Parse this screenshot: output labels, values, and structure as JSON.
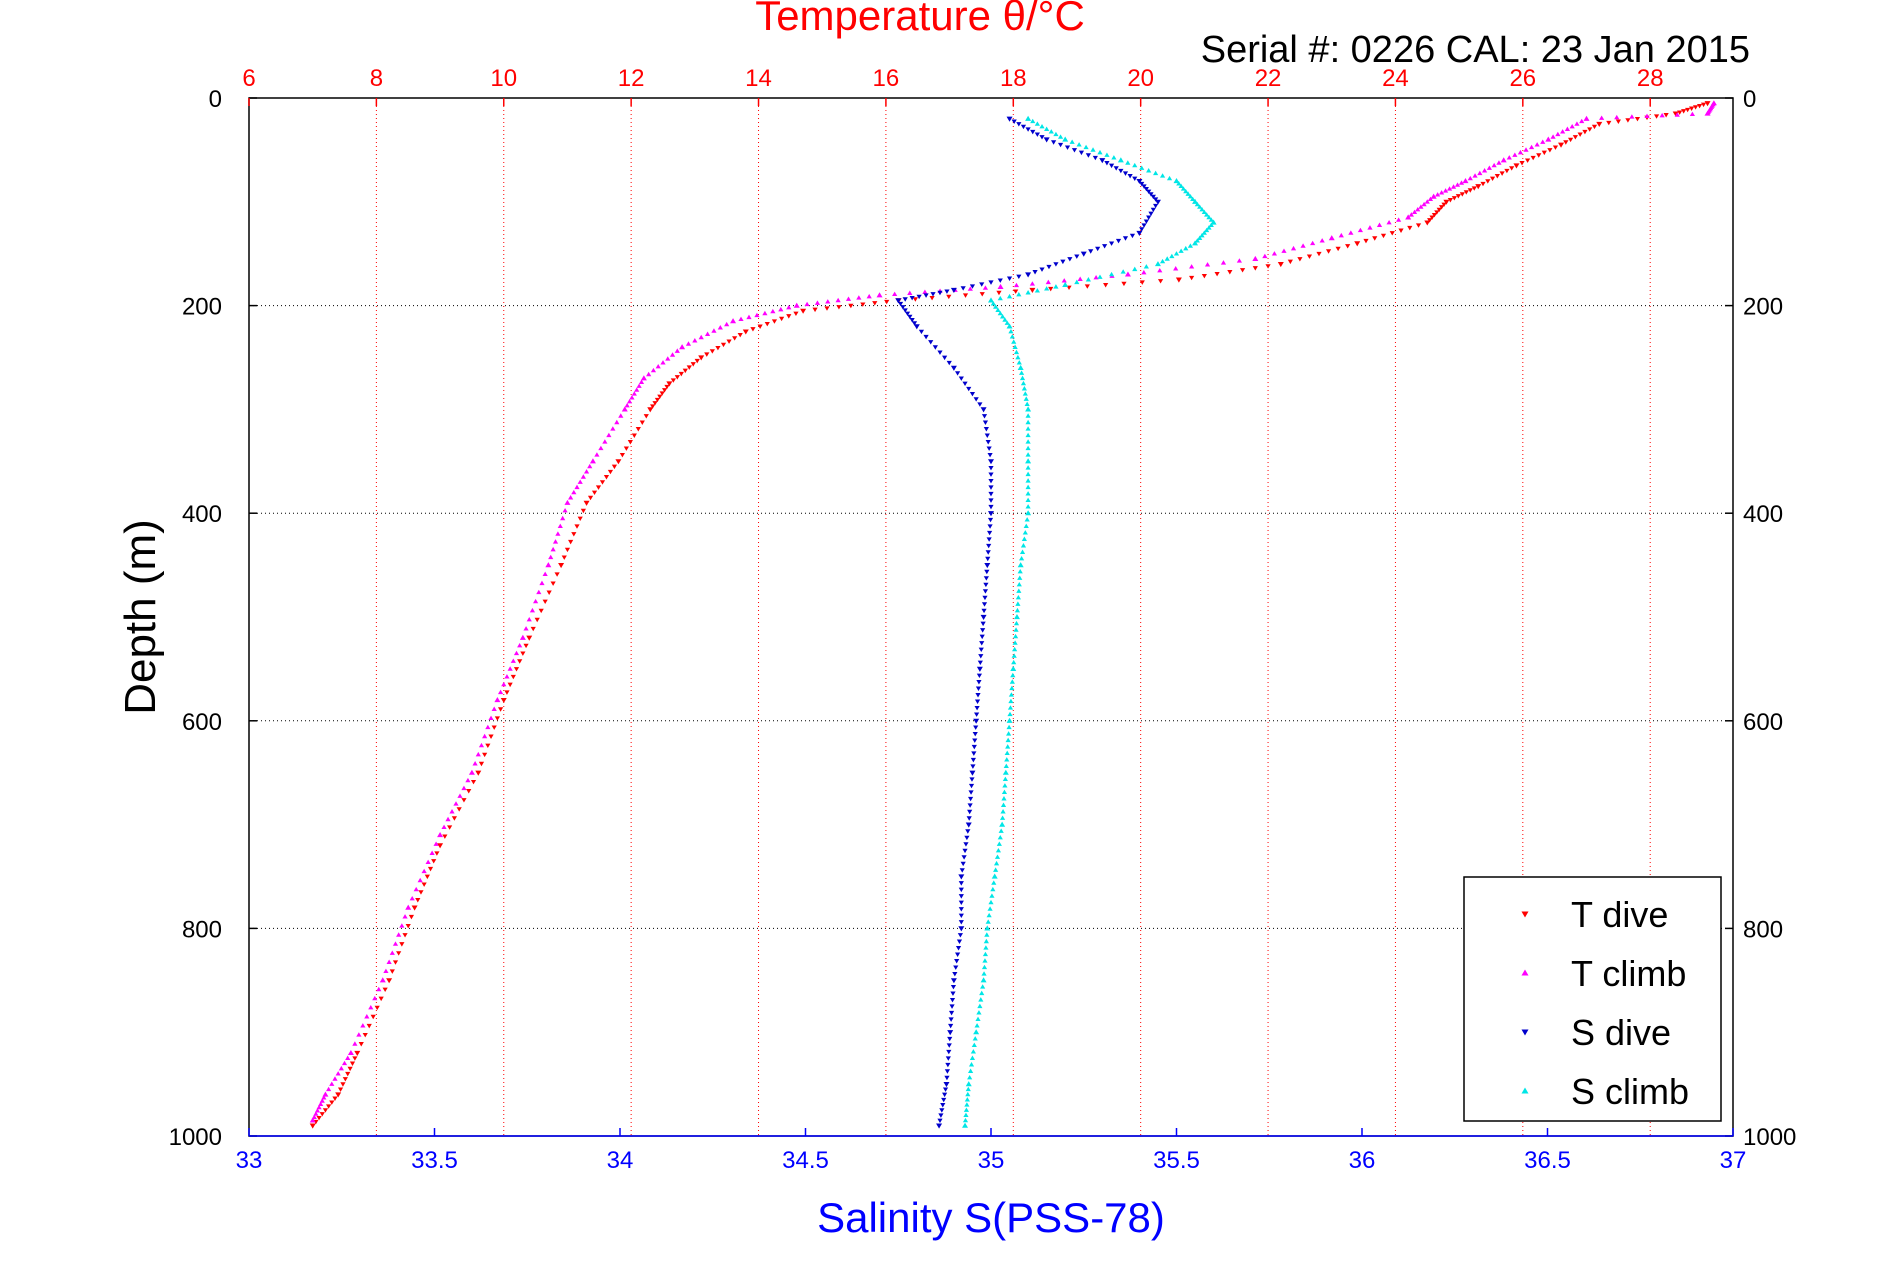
{
  "chart_data": {
    "type": "scatter",
    "title": "Temperature θ/°C",
    "subtitle": "Serial #: 0226  CAL: 23 Jan 2015",
    "ylabel": "Depth (m)",
    "xlabel_bottom": "Salinity S(PSS-78)",
    "x_top_label": "Temperature θ/°C",
    "y_reversed": true,
    "ylim": [
      0,
      1000
    ],
    "yticks": [
      "0",
      "200",
      "400",
      "600",
      "800",
      "1000"
    ],
    "x_bottom_lim": [
      33,
      37
    ],
    "x_bottom_ticks": [
      "33",
      "33.5",
      "34",
      "34.5",
      "35",
      "35.5",
      "36",
      "36.5",
      "37"
    ],
    "x_top_lim": [
      6,
      29.3
    ],
    "x_top_ticks": [
      "6",
      "8",
      "10",
      "12",
      "14",
      "16",
      "18",
      "20",
      "22",
      "24",
      "26",
      "28"
    ],
    "grid": true,
    "legend_position": "bottom-right",
    "colors": {
      "title": "#ff0000",
      "salinity_axis": "#0000ff",
      "t_dive": "#ff0000",
      "t_climb": "#ff00ff",
      "s_dive": "#0000cc",
      "s_climb": "#00e6e6",
      "grid": "#000000",
      "temp_grid": "#ff0000"
    },
    "series": [
      {
        "name": "T dive",
        "axis": "top",
        "marker": "triangle-down",
        "points": [
          [
            28.9,
            5
          ],
          [
            28.4,
            15
          ],
          [
            27.2,
            25
          ],
          [
            26.6,
            45
          ],
          [
            25.9,
            65
          ],
          [
            25.3,
            85
          ],
          [
            24.8,
            100
          ],
          [
            24.5,
            120
          ],
          [
            23.4,
            140
          ],
          [
            22.2,
            160
          ],
          [
            20.6,
            175
          ],
          [
            18.3,
            185
          ],
          [
            16.2,
            195
          ],
          [
            14.7,
            205
          ],
          [
            13.8,
            225
          ],
          [
            13.1,
            250
          ],
          [
            12.6,
            275
          ],
          [
            12.3,
            300
          ],
          [
            11.8,
            350
          ],
          [
            11.3,
            390
          ],
          [
            10.9,
            450
          ],
          [
            10.4,
            520
          ],
          [
            10.0,
            580
          ],
          [
            9.6,
            650
          ],
          [
            9.0,
            720
          ],
          [
            8.6,
            780
          ],
          [
            8.2,
            850
          ],
          [
            7.7,
            920
          ],
          [
            7.4,
            960
          ],
          [
            7.0,
            990
          ]
        ]
      },
      {
        "name": "T climb",
        "axis": "top",
        "marker": "triangle-up",
        "points": [
          [
            29.0,
            5
          ],
          [
            28.9,
            15
          ],
          [
            27.0,
            20
          ],
          [
            26.4,
            40
          ],
          [
            25.7,
            60
          ],
          [
            25.1,
            80
          ],
          [
            24.6,
            95
          ],
          [
            24.2,
            115
          ],
          [
            23.0,
            135
          ],
          [
            21.8,
            155
          ],
          [
            19.8,
            170
          ],
          [
            17.8,
            182
          ],
          [
            15.9,
            190
          ],
          [
            14.6,
            200
          ],
          [
            13.6,
            215
          ],
          [
            12.8,
            240
          ],
          [
            12.2,
            270
          ],
          [
            11.9,
            300
          ],
          [
            11.4,
            350
          ],
          [
            11.0,
            390
          ],
          [
            10.7,
            450
          ],
          [
            10.3,
            520
          ],
          [
            9.9,
            580
          ],
          [
            9.5,
            650
          ],
          [
            9.0,
            710
          ],
          [
            8.5,
            780
          ],
          [
            8.1,
            850
          ],
          [
            7.6,
            920
          ],
          [
            7.2,
            960
          ],
          [
            7.0,
            985
          ]
        ]
      },
      {
        "name": "S dive",
        "axis": "bottom",
        "marker": "triangle-down",
        "points": [
          [
            35.05,
            20
          ],
          [
            35.15,
            40
          ],
          [
            35.3,
            60
          ],
          [
            35.4,
            80
          ],
          [
            35.45,
            100
          ],
          [
            35.4,
            130
          ],
          [
            35.25,
            150
          ],
          [
            35.1,
            170
          ],
          [
            34.9,
            185
          ],
          [
            34.75,
            195
          ],
          [
            34.8,
            220
          ],
          [
            34.9,
            260
          ],
          [
            34.98,
            300
          ],
          [
            35.0,
            350
          ],
          [
            35.0,
            400
          ],
          [
            34.99,
            450
          ],
          [
            34.98,
            500
          ],
          [
            34.97,
            550
          ],
          [
            34.96,
            600
          ],
          [
            34.95,
            650
          ],
          [
            34.94,
            700
          ],
          [
            34.92,
            750
          ],
          [
            34.92,
            800
          ],
          [
            34.9,
            850
          ],
          [
            34.89,
            900
          ],
          [
            34.88,
            950
          ],
          [
            34.86,
            990
          ]
        ]
      },
      {
        "name": "S climb",
        "axis": "bottom",
        "marker": "triangle-up",
        "points": [
          [
            35.1,
            20
          ],
          [
            35.2,
            40
          ],
          [
            35.35,
            60
          ],
          [
            35.5,
            80
          ],
          [
            35.55,
            100
          ],
          [
            35.6,
            120
          ],
          [
            35.55,
            140
          ],
          [
            35.45,
            160
          ],
          [
            35.2,
            180
          ],
          [
            35.0,
            195
          ],
          [
            35.05,
            220
          ],
          [
            35.08,
            260
          ],
          [
            35.1,
            300
          ],
          [
            35.1,
            350
          ],
          [
            35.1,
            400
          ],
          [
            35.08,
            450
          ],
          [
            35.07,
            500
          ],
          [
            35.06,
            550
          ],
          [
            35.05,
            600
          ],
          [
            35.04,
            650
          ],
          [
            35.03,
            700
          ],
          [
            35.01,
            750
          ],
          [
            34.99,
            800
          ],
          [
            34.98,
            850
          ],
          [
            34.96,
            900
          ],
          [
            34.94,
            950
          ],
          [
            34.93,
            990
          ]
        ]
      }
    ]
  }
}
